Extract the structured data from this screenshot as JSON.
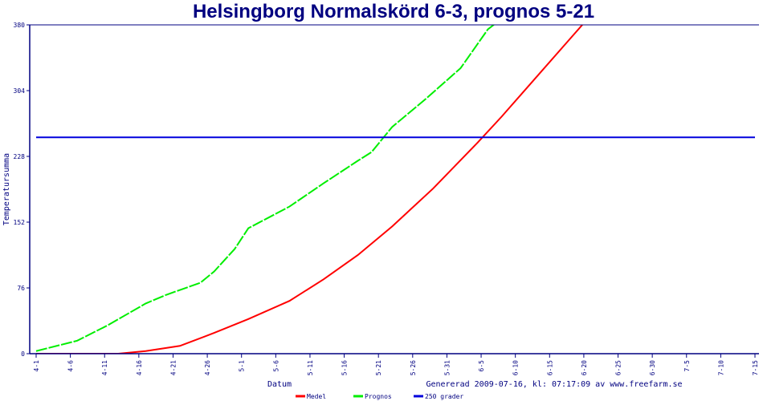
{
  "chart_data": {
    "type": "line",
    "title": "Helsingborg Normalskörd 6-3, prognos 5-21",
    "xlabel": "Datum",
    "ylabel": "Temperatursumma",
    "footer": "Genererad 2009-07-16, kl: 07:17:09 av www.freefarm.se",
    "ylim": [
      0,
      380
    ],
    "yticks": [
      "0",
      "76",
      "152",
      "228",
      "304",
      "380"
    ],
    "xticks": [
      "4-1",
      "4-6",
      "4-11",
      "4-16",
      "4-21",
      "4-26",
      "5-1",
      "5-6",
      "5-11",
      "5-16",
      "5-21",
      "5-26",
      "5-31",
      "6-5",
      "6-10",
      "6-15",
      "6-20",
      "6-25",
      "6-30",
      "7-5",
      "7-10",
      "7-15"
    ],
    "x_unit": "days since 4-1",
    "xlim": [
      0,
      105
    ],
    "legend_position": "bottom",
    "series": [
      {
        "name": "Medel",
        "color": "#ff0000",
        "x": [
          0,
          12,
          16,
          21,
          26,
          31,
          37,
          42,
          47,
          52,
          58,
          64.5,
          68,
          73,
          78,
          82
        ],
        "y": [
          0,
          0,
          3,
          9,
          24,
          40,
          61,
          86,
          114,
          147,
          191,
          244,
          274,
          319,
          364,
          400
        ]
      },
      {
        "name": "Prognos",
        "color": "#00ee00",
        "dashed": true,
        "x": [
          0,
          6,
          10.5,
          16,
          19,
          24,
          26,
          29,
          31,
          37,
          42,
          47,
          49,
          52,
          57,
          62,
          66,
          71
        ],
        "y": [
          3,
          15,
          33,
          58,
          68,
          82,
          95,
          121,
          145,
          170,
          197,
          223,
          233,
          262,
          295,
          330,
          375,
          405
        ]
      },
      {
        "name": "250 grader",
        "color": "#0000dd",
        "x": [
          0,
          105
        ],
        "y": [
          250,
          250
        ]
      }
    ]
  }
}
